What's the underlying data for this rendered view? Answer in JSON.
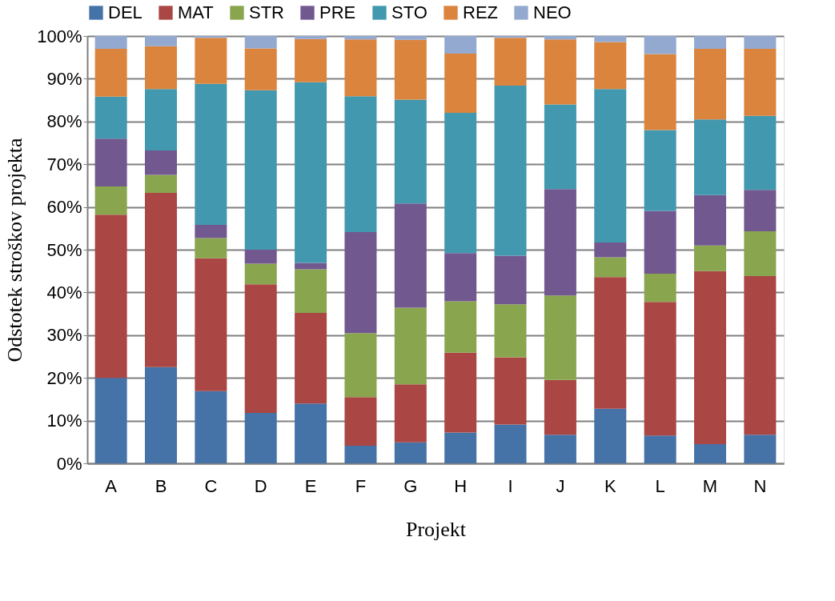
{
  "chart_data": {
    "type": "bar",
    "stacked": true,
    "xlabel": "Projekt",
    "ylabel": "Odstotek stroškov projekta",
    "categories": [
      "A",
      "B",
      "C",
      "D",
      "E",
      "F",
      "G",
      "H",
      "I",
      "J",
      "K",
      "L",
      "M",
      "N"
    ],
    "series": [
      {
        "name": "DEL",
        "color": "#4572a7",
        "values": [
          20,
          22.5,
          16.9,
          11.8,
          14,
          4.1,
          4.9,
          7.2,
          9.1,
          6.7,
          12.8,
          6.5,
          4.5,
          6.7
        ]
      },
      {
        "name": "MAT",
        "color": "#aa4643",
        "values": [
          38.2,
          40.8,
          31.1,
          30.1,
          21.2,
          11.4,
          13.6,
          18.7,
          15.7,
          12.8,
          30.8,
          31.3,
          40.5,
          37.1
        ]
      },
      {
        "name": "STR",
        "color": "#89a54e",
        "values": [
          6.6,
          4.2,
          4.7,
          4.8,
          10.2,
          15,
          17.9,
          12,
          12.4,
          19.8,
          4.6,
          6.6,
          6,
          10.5
        ]
      },
      {
        "name": "PRE",
        "color": "#71588f",
        "values": [
          11.2,
          5.7,
          3.1,
          3.3,
          1.5,
          23.6,
          24.4,
          11.3,
          11.4,
          24.9,
          3.5,
          14.7,
          11.8,
          9.7
        ]
      },
      {
        "name": "STO",
        "color": "#4198af",
        "values": [
          9.8,
          14.4,
          33,
          37.3,
          42.3,
          31.8,
          24.3,
          32.8,
          39.8,
          19.8,
          35.9,
          18.9,
          17.7,
          17.3
        ]
      },
      {
        "name": "REZ",
        "color": "#db843d",
        "values": [
          11.2,
          10,
          10.8,
          9.8,
          10.1,
          13.3,
          14,
          13.9,
          11.2,
          15.2,
          11,
          17.8,
          16.5,
          15.7
        ]
      },
      {
        "name": "NEO",
        "color": "#93a9cf",
        "values": [
          3,
          2.4,
          0.4,
          2.9,
          0.7,
          0.8,
          0.9,
          4.1,
          0.4,
          0.8,
          1.4,
          4.2,
          3,
          3
        ]
      }
    ],
    "ylim": [
      0,
      100
    ],
    "yticks": [
      {
        "value": 0,
        "label": "0%"
      },
      {
        "value": 10,
        "label": "10%"
      },
      {
        "value": 20,
        "label": "20%"
      },
      {
        "value": 30,
        "label": "30%"
      },
      {
        "value": 40,
        "label": "40%"
      },
      {
        "value": 50,
        "label": "50%"
      },
      {
        "value": 60,
        "label": "60%"
      },
      {
        "value": 70,
        "label": "70%"
      },
      {
        "value": 80,
        "label": "80%"
      },
      {
        "value": 90,
        "label": "90%"
      },
      {
        "value": 100,
        "label": "100%"
      }
    ],
    "grid": "y",
    "legend": "top"
  }
}
